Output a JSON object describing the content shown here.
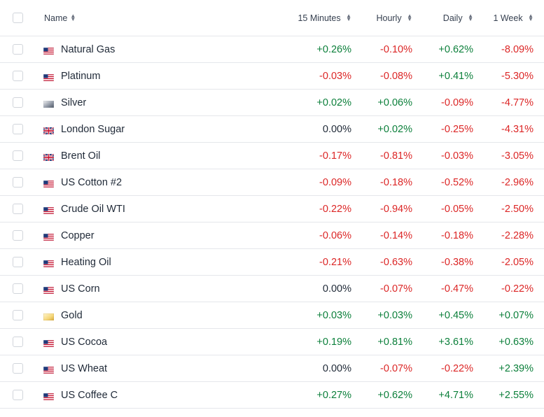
{
  "colors": {
    "positive": "#0b7f3a",
    "negative": "#dc2626",
    "neutral": "#1f2937"
  },
  "header": {
    "name": "Name",
    "m15": "15 Minutes",
    "hourly": "Hourly",
    "daily": "Daily",
    "week": "1 Week"
  },
  "rows": [
    {
      "name": "Natural Gas",
      "flag": "us-flag-icon",
      "m15": "+0.26%",
      "hourly": "-0.10%",
      "daily": "+0.62%",
      "week": "-8.09%"
    },
    {
      "name": "Platinum",
      "flag": "us-flag-icon",
      "m15": "-0.03%",
      "hourly": "-0.08%",
      "daily": "+0.41%",
      "week": "-5.30%"
    },
    {
      "name": "Silver",
      "flag": "silver-commodity-icon",
      "m15": "+0.02%",
      "hourly": "+0.06%",
      "daily": "-0.09%",
      "week": "-4.77%"
    },
    {
      "name": "London Sugar",
      "flag": "uk-flag-icon",
      "m15": "0.00%",
      "hourly": "+0.02%",
      "daily": "-0.25%",
      "week": "-4.31%"
    },
    {
      "name": "Brent Oil",
      "flag": "uk-flag-icon",
      "m15": "-0.17%",
      "hourly": "-0.81%",
      "daily": "-0.03%",
      "week": "-3.05%"
    },
    {
      "name": "US Cotton #2",
      "flag": "us-flag-icon",
      "m15": "-0.09%",
      "hourly": "-0.18%",
      "daily": "-0.52%",
      "week": "-2.96%"
    },
    {
      "name": "Crude Oil WTI",
      "flag": "us-flag-icon",
      "m15": "-0.22%",
      "hourly": "-0.94%",
      "daily": "-0.05%",
      "week": "-2.50%"
    },
    {
      "name": "Copper",
      "flag": "us-flag-icon",
      "m15": "-0.06%",
      "hourly": "-0.14%",
      "daily": "-0.18%",
      "week": "-2.28%"
    },
    {
      "name": "Heating Oil",
      "flag": "us-flag-icon",
      "m15": "-0.21%",
      "hourly": "-0.63%",
      "daily": "-0.38%",
      "week": "-2.05%"
    },
    {
      "name": "US Corn",
      "flag": "us-flag-icon",
      "m15": "0.00%",
      "hourly": "-0.07%",
      "daily": "-0.47%",
      "week": "-0.22%"
    },
    {
      "name": "Gold",
      "flag": "gold-commodity-icon",
      "m15": "+0.03%",
      "hourly": "+0.03%",
      "daily": "+0.45%",
      "week": "+0.07%"
    },
    {
      "name": "US Cocoa",
      "flag": "us-flag-icon",
      "m15": "+0.19%",
      "hourly": "+0.81%",
      "daily": "+3.61%",
      "week": "+0.63%"
    },
    {
      "name": "US Wheat",
      "flag": "us-flag-icon",
      "m15": "0.00%",
      "hourly": "-0.07%",
      "daily": "-0.22%",
      "week": "+2.39%"
    },
    {
      "name": "US Coffee C",
      "flag": "us-flag-icon",
      "m15": "+0.27%",
      "hourly": "+0.62%",
      "daily": "+4.71%",
      "week": "+2.55%"
    }
  ]
}
